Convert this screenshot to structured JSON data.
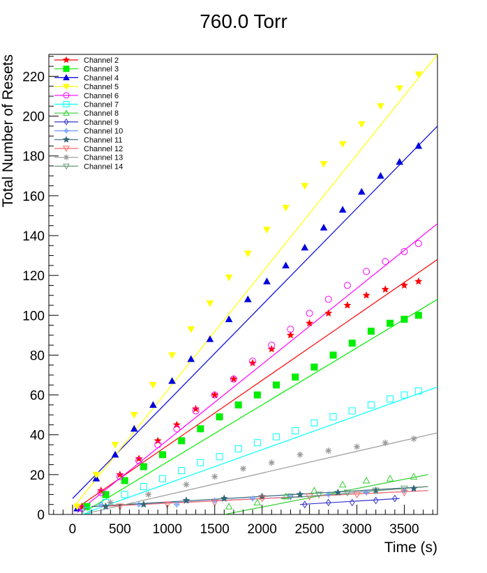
{
  "chart_data": {
    "type": "scatter",
    "title": "760.0 Torr",
    "xlabel": "Time (s)",
    "ylabel": "Total Number of Resets",
    "xlim": [
      -250,
      3850
    ],
    "ylim": [
      0,
      231
    ],
    "xticks": [
      0,
      500,
      1000,
      1500,
      2000,
      2500,
      3000,
      3500
    ],
    "yticks": [
      0,
      20,
      40,
      60,
      80,
      100,
      120,
      140,
      160,
      180,
      200,
      220
    ],
    "grid": false,
    "legend_position": "top-left",
    "series": [
      {
        "name": "Channel 2",
        "color": "#ff0000",
        "marker": "star",
        "filled": true,
        "points": [
          [
            100,
            4
          ],
          [
            300,
            12
          ],
          [
            500,
            20
          ],
          [
            700,
            28
          ],
          [
            900,
            37
          ],
          [
            1100,
            45
          ],
          [
            1300,
            53
          ],
          [
            1500,
            60
          ],
          [
            1700,
            68
          ],
          [
            1900,
            76
          ],
          [
            2100,
            83
          ],
          [
            2300,
            90
          ],
          [
            2500,
            96
          ],
          [
            2700,
            101
          ],
          [
            2900,
            105
          ],
          [
            3100,
            110
          ],
          [
            3300,
            113
          ],
          [
            3500,
            115
          ],
          [
            3650,
            117
          ]
        ],
        "fit": [
          [
            100,
            5
          ],
          [
            3850,
            128
          ]
        ]
      },
      {
        "name": "Channel 3",
        "color": "#00ee00",
        "marker": "square",
        "filled": true,
        "points": [
          [
            150,
            4
          ],
          [
            350,
            10
          ],
          [
            550,
            17
          ],
          [
            750,
            24
          ],
          [
            950,
            30
          ],
          [
            1150,
            37
          ],
          [
            1350,
            43
          ],
          [
            1550,
            49
          ],
          [
            1750,
            55
          ],
          [
            1950,
            60
          ],
          [
            2150,
            65
          ],
          [
            2350,
            69
          ],
          [
            2550,
            74
          ],
          [
            2750,
            80
          ],
          [
            2950,
            86
          ],
          [
            3150,
            92
          ],
          [
            3350,
            96
          ],
          [
            3500,
            98
          ],
          [
            3650,
            100
          ]
        ],
        "fit": [
          [
            150,
            2
          ],
          [
            3850,
            108
          ]
        ]
      },
      {
        "name": "Channel 4",
        "color": "#0000dd",
        "marker": "triangle-up",
        "filled": true,
        "points": [
          [
            50,
            3
          ],
          [
            250,
            18
          ],
          [
            450,
            30
          ],
          [
            650,
            43
          ],
          [
            850,
            55
          ],
          [
            1050,
            67
          ],
          [
            1250,
            78
          ],
          [
            1450,
            88
          ],
          [
            1650,
            98
          ],
          [
            1850,
            108
          ],
          [
            2050,
            117
          ],
          [
            2250,
            125
          ],
          [
            2450,
            134
          ],
          [
            2650,
            144
          ],
          [
            2850,
            153
          ],
          [
            3050,
            162
          ],
          [
            3250,
            170
          ],
          [
            3450,
            177
          ],
          [
            3650,
            185
          ]
        ],
        "fit": [
          [
            0,
            8
          ],
          [
            3850,
            195
          ]
        ]
      },
      {
        "name": "Channel 5",
        "color": "#ffff00",
        "marker": "triangle-down",
        "filled": true,
        "points": [
          [
            50,
            4
          ],
          [
            250,
            20
          ],
          [
            450,
            35
          ],
          [
            650,
            50
          ],
          [
            850,
            65
          ],
          [
            1050,
            80
          ],
          [
            1250,
            93
          ],
          [
            1450,
            106
          ],
          [
            1650,
            119
          ],
          [
            1850,
            131
          ],
          [
            2050,
            143
          ],
          [
            2250,
            154
          ],
          [
            2450,
            165
          ],
          [
            2650,
            176
          ],
          [
            2850,
            186
          ],
          [
            3050,
            196
          ],
          [
            3250,
            205
          ],
          [
            3450,
            214
          ],
          [
            3650,
            221
          ]
        ],
        "fit": [
          [
            0,
            3
          ],
          [
            3850,
            231
          ]
        ]
      },
      {
        "name": "Channel 6",
        "color": "#ff00ff",
        "marker": "circle",
        "filled": false,
        "points": [
          [
            100,
            3
          ],
          [
            300,
            11
          ],
          [
            500,
            19
          ],
          [
            700,
            27
          ],
          [
            900,
            35
          ],
          [
            1100,
            43
          ],
          [
            1300,
            52
          ],
          [
            1500,
            60
          ],
          [
            1700,
            68
          ],
          [
            1900,
            77
          ],
          [
            2100,
            85
          ],
          [
            2300,
            93
          ],
          [
            2500,
            101
          ],
          [
            2700,
            108
          ],
          [
            2900,
            115
          ],
          [
            3100,
            122
          ],
          [
            3300,
            127
          ],
          [
            3500,
            132
          ],
          [
            3650,
            136
          ]
        ],
        "fit": [
          [
            50,
            1
          ],
          [
            3850,
            146
          ]
        ]
      },
      {
        "name": "Channel 7",
        "color": "#00ffff",
        "marker": "square",
        "filled": false,
        "points": [
          [
            150,
            2
          ],
          [
            350,
            6
          ],
          [
            550,
            10
          ],
          [
            750,
            14
          ],
          [
            950,
            18
          ],
          [
            1150,
            22
          ],
          [
            1350,
            26
          ],
          [
            1550,
            29
          ],
          [
            1750,
            33
          ],
          [
            1950,
            36
          ],
          [
            2150,
            39
          ],
          [
            2350,
            42
          ],
          [
            2550,
            46
          ],
          [
            2750,
            49
          ],
          [
            2950,
            52
          ],
          [
            3150,
            55
          ],
          [
            3350,
            58
          ],
          [
            3500,
            60
          ],
          [
            3650,
            62
          ]
        ],
        "fit": [
          [
            150,
            1
          ],
          [
            3850,
            64
          ]
        ]
      },
      {
        "name": "Channel 8",
        "color": "#33cc33",
        "marker": "triangle-up",
        "filled": false,
        "points": [
          [
            1650,
            4
          ],
          [
            1950,
            6
          ],
          [
            2250,
            9
          ],
          [
            2550,
            12
          ],
          [
            2850,
            15
          ],
          [
            3100,
            17
          ],
          [
            3350,
            18
          ],
          [
            3600,
            19
          ]
        ],
        "fit": [
          [
            1600,
            0
          ],
          [
            3750,
            20
          ]
        ]
      },
      {
        "name": "Channel 9",
        "color": "#3333cc",
        "marker": "diamond",
        "filled": false,
        "points": [
          [
            2450,
            5
          ],
          [
            2700,
            6
          ],
          [
            2950,
            6
          ],
          [
            3200,
            7
          ],
          [
            3400,
            8
          ]
        ],
        "fit": [
          [
            2400,
            5
          ],
          [
            3450,
            8
          ]
        ]
      },
      {
        "name": "Channel 10",
        "color": "#6699ff",
        "marker": "cross",
        "filled": false,
        "points": [
          [
            300,
            5
          ],
          [
            700,
            5
          ],
          [
            1100,
            5
          ],
          [
            1500,
            7
          ],
          [
            1900,
            8
          ],
          [
            2300,
            9
          ],
          [
            2700,
            10
          ],
          [
            3100,
            11
          ],
          [
            3500,
            12
          ]
        ],
        "fit": [
          [
            200,
            4
          ],
          [
            3750,
            12
          ]
        ]
      },
      {
        "name": "Channel 11",
        "color": "#336677",
        "marker": "star",
        "filled": true,
        "points": [
          [
            350,
            4
          ],
          [
            750,
            5
          ],
          [
            1200,
            7
          ],
          [
            1600,
            8
          ],
          [
            2000,
            9
          ],
          [
            2400,
            10
          ],
          [
            2800,
            11
          ],
          [
            3200,
            12
          ],
          [
            3600,
            13
          ]
        ],
        "fit": [
          [
            200,
            4
          ],
          [
            3750,
            14
          ]
        ]
      },
      {
        "name": "Channel 12",
        "color": "#ff6666",
        "marker": "triangle-down",
        "filled": false,
        "points": [
          [
            500,
            4
          ],
          [
            1000,
            5
          ],
          [
            1500,
            6
          ],
          [
            2000,
            8
          ],
          [
            2500,
            9
          ],
          [
            3000,
            10
          ],
          [
            3500,
            11
          ]
        ],
        "fit": [
          [
            300,
            4
          ],
          [
            3750,
            12
          ]
        ]
      },
      {
        "name": "Channel 13",
        "color": "#999999",
        "marker": "asterisk",
        "filled": false,
        "points": [
          [
            400,
            6
          ],
          [
            800,
            10
          ],
          [
            1200,
            15
          ],
          [
            1500,
            19
          ],
          [
            1800,
            23
          ],
          [
            2100,
            26
          ],
          [
            2400,
            30
          ],
          [
            2700,
            32
          ],
          [
            3000,
            34
          ],
          [
            3300,
            36
          ],
          [
            3600,
            38
          ]
        ],
        "fit": [
          [
            100,
            0
          ],
          [
            3850,
            41
          ]
        ]
      },
      {
        "name": "Channel 14",
        "color": "#669977",
        "marker": "triangle-down",
        "filled": false,
        "points": [
          [
            2300,
            9
          ],
          [
            2600,
            10
          ],
          [
            2900,
            11
          ],
          [
            3200,
            12
          ],
          [
            3500,
            13
          ]
        ],
        "fit": [
          [
            2200,
            8
          ],
          [
            3750,
            14
          ]
        ]
      }
    ]
  }
}
